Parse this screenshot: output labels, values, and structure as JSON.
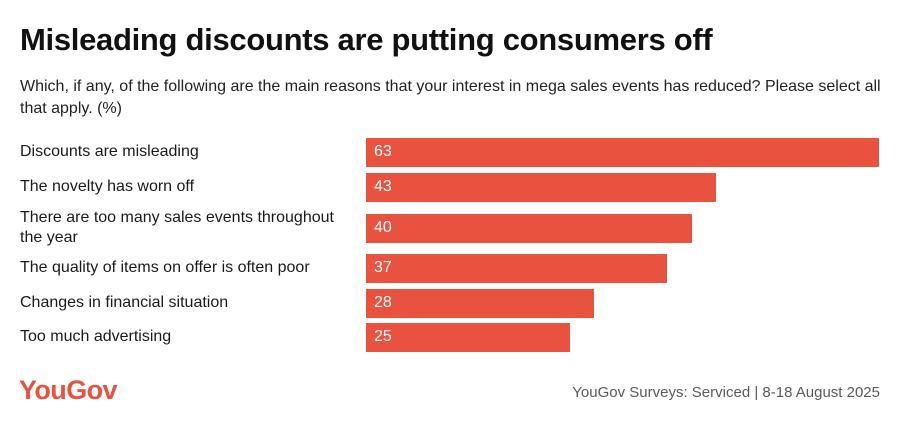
{
  "colors": {
    "bar": "#e8523f",
    "logo": "#e8523f"
  },
  "chart_data": {
    "type": "bar",
    "orientation": "horizontal",
    "title": "Misleading discounts are putting consumers off",
    "subtitle": "Which, if any, of the following are the main reasons that your interest in mega sales events has reduced? Please select all that apply. (%)",
    "categories": [
      "Discounts are misleading",
      "The novelty has worn off",
      "There are too many sales events throughout the year",
      "The quality of items on offer is often poor",
      "Changes in financial situation",
      "Too much advertising"
    ],
    "values": [
      63,
      43,
      40,
      37,
      28,
      25
    ],
    "xlim": [
      0,
      63
    ],
    "xlabel": "",
    "ylabel": ""
  },
  "footer": {
    "logo_text": "YouGov",
    "source": "YouGov Surveys: Serviced | 8-18 August 2025"
  }
}
